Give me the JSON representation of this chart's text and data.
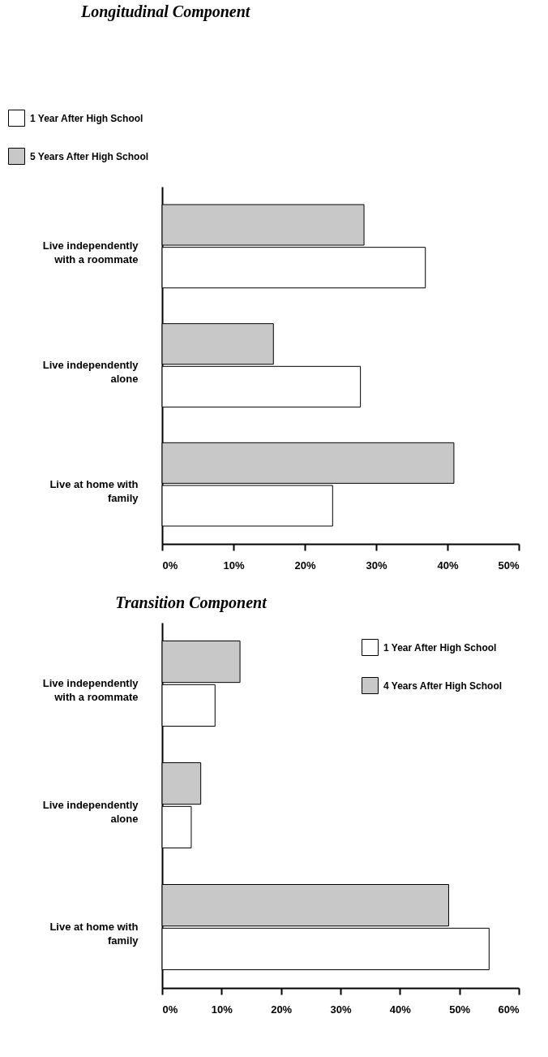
{
  "chart_data": [
    {
      "type": "bar",
      "orientation": "horizontal",
      "title": "Longitudinal Component",
      "categories": [
        "Live independently with a roommate",
        "Live independently alone",
        "Live at home with family"
      ],
      "series": [
        {
          "name": "1 Year After High School",
          "color": "#ffffff",
          "values": [
            36.9,
            27.8,
            23.9
          ]
        },
        {
          "name": "5 Years After High School",
          "color": "#c8c8c8",
          "values": [
            28.3,
            15.6,
            40.9
          ]
        }
      ],
      "xlim": [
        0,
        50
      ],
      "xticks": [
        {
          "value": 0,
          "label": "0%"
        },
        {
          "value": 10,
          "label": "10%"
        },
        {
          "value": 20,
          "label": "20%"
        },
        {
          "value": 30,
          "label": "30%"
        },
        {
          "value": 40,
          "label": "40%"
        },
        {
          "value": 50,
          "label": "50%"
        }
      ],
      "grid": false,
      "legend": "top left"
    },
    {
      "type": "bar",
      "orientation": "horizontal",
      "title": "Transition Component",
      "categories": [
        "Live independently with a roommate",
        "Live independently alone",
        "Live at home with family"
      ],
      "series": [
        {
          "name": "1 Year After High School",
          "color": "#ffffff",
          "values": [
            8.9,
            4.9,
            55
          ]
        },
        {
          "name": "4 Years After High School",
          "color": "#c8c8c8",
          "values": [
            13.1,
            6.5,
            48.2
          ]
        }
      ],
      "xlim": [
        0,
        60
      ],
      "xticks": [
        {
          "value": 0,
          "label": "0%"
        },
        {
          "value": 10,
          "label": "10%"
        },
        {
          "value": 20,
          "label": "20%"
        },
        {
          "value": 30,
          "label": "30%"
        },
        {
          "value": 40,
          "label": "40%"
        },
        {
          "value": 50,
          "label": "50%"
        },
        {
          "value": 60,
          "label": "60%"
        }
      ],
      "grid": false,
      "legend": "top right"
    }
  ]
}
